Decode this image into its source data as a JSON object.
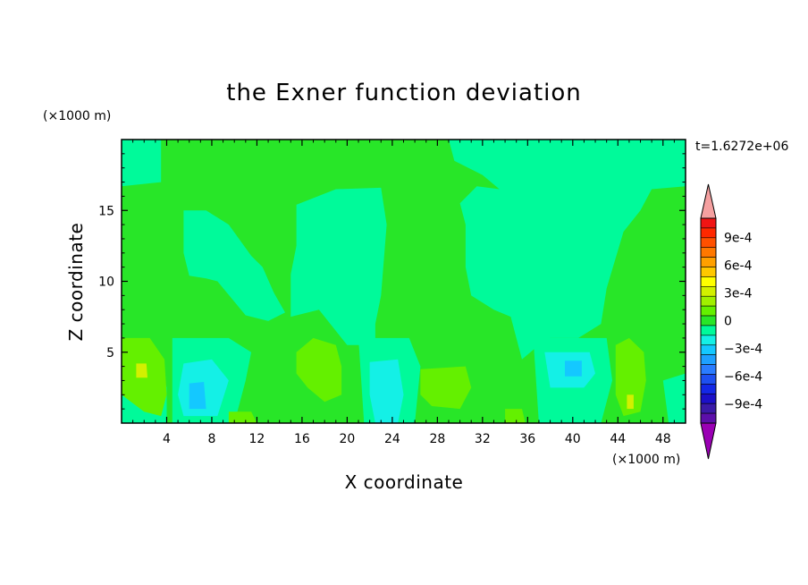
{
  "chart_data": {
    "type": "heatmap",
    "title": "the Exner function deviation",
    "xlabel": "X coordinate",
    "ylabel": "Z coordinate",
    "x_unit": "(×1000 m)",
    "y_unit": "(×1000 m)",
    "time_label": "t=1.6272e+06",
    "xlim": [
      0,
      50
    ],
    "ylim": [
      0,
      20
    ],
    "x_ticks": [
      4,
      8,
      12,
      16,
      20,
      24,
      28,
      32,
      36,
      40,
      44,
      48
    ],
    "y_ticks": [
      5,
      10,
      15
    ],
    "x_tick_labels": [
      "4",
      "8",
      "12",
      "16",
      "20",
      "24",
      "28",
      "32",
      "36",
      "40",
      "44",
      "48"
    ],
    "y_tick_labels": [
      "5",
      "10",
      "15"
    ],
    "colorbar": {
      "levels": [
        -0.0011,
        -0.001,
        -0.0009,
        -0.0008,
        -0.0007,
        -0.0006,
        -0.0005,
        -0.0004,
        -0.0003,
        -0.0002,
        -0.0001,
        0,
        0.0001,
        0.0002,
        0.0003,
        0.0004,
        0.0005,
        0.0006,
        0.0007,
        0.0008,
        0.0009,
        0.001,
        0.0011
      ],
      "colors": [
        "#9a00b4",
        "#5c0faa",
        "#3a1aa8",
        "#1c10c8",
        "#1428e6",
        "#1e50f0",
        "#2a7cff",
        "#1ea0ff",
        "#14c8ff",
        "#14f0e6",
        "#00fa9a",
        "#28e628",
        "#64f000",
        "#a0f000",
        "#d2f000",
        "#ffff00",
        "#ffc800",
        "#ffa000",
        "#ff7800",
        "#ff5000",
        "#ff2800",
        "#f01414",
        "#f5a0a0"
      ],
      "tick_labels": [
        {
          "label": "9e-4",
          "value": 0.0009
        },
        {
          "label": "6e-4",
          "value": 0.0006
        },
        {
          "label": "3e-4",
          "value": 0.0003
        },
        {
          "label": "0",
          "value": 0
        },
        {
          "label": "−3e-4",
          "value": -0.0003
        },
        {
          "label": "−6e-4",
          "value": -0.0006
        },
        {
          "label": "−9e-4",
          "value": -0.0009
        }
      ]
    },
    "regions": [
      {
        "level": "light",
        "color": "#00fa9a",
        "poly": [
          [
            0,
            20
          ],
          [
            3.5,
            20
          ],
          [
            3.5,
            17
          ],
          [
            0,
            16.7
          ]
        ]
      },
      {
        "level": "light",
        "color": "#00fa9a",
        "poly": [
          [
            5.5,
            15
          ],
          [
            7.5,
            15
          ],
          [
            9.5,
            14
          ],
          [
            11.5,
            11.8
          ],
          [
            12.5,
            11
          ],
          [
            13.5,
            9.2
          ],
          [
            14.5,
            7.8
          ],
          [
            13,
            7.2
          ],
          [
            11,
            7.6
          ],
          [
            8.5,
            10
          ],
          [
            7.5,
            10.2
          ],
          [
            6,
            10.4
          ],
          [
            5.5,
            12
          ]
        ]
      },
      {
        "level": "light",
        "color": "#00fa9a",
        "poly": [
          [
            15.5,
            15.4
          ],
          [
            19,
            16.5
          ],
          [
            23,
            16.6
          ],
          [
            23.5,
            14
          ],
          [
            23,
            9
          ],
          [
            22.5,
            7
          ],
          [
            22.5,
            5.5
          ],
          [
            20,
            5.5
          ],
          [
            17.5,
            8
          ],
          [
            15,
            7.5
          ],
          [
            15,
            10.5
          ],
          [
            15.5,
            12.5
          ]
        ]
      },
      {
        "level": "light",
        "color": "#00fa9a",
        "poly": [
          [
            29,
            20
          ],
          [
            50,
            20
          ],
          [
            50,
            16.7
          ],
          [
            47,
            16.5
          ],
          [
            46,
            15
          ],
          [
            44.5,
            13.5
          ],
          [
            43,
            9.5
          ],
          [
            42.5,
            7
          ],
          [
            40.5,
            6
          ],
          [
            38,
            6
          ],
          [
            37,
            5.5
          ],
          [
            35.5,
            4.5
          ],
          [
            35,
            6
          ],
          [
            34.5,
            7.5
          ],
          [
            33,
            8
          ],
          [
            31,
            9
          ],
          [
            30.5,
            11
          ],
          [
            30.5,
            14
          ],
          [
            30,
            15.5
          ],
          [
            31.5,
            16.7
          ],
          [
            33.5,
            16.5
          ],
          [
            32,
            17.5
          ],
          [
            29.5,
            18.5
          ]
        ]
      },
      {
        "level": "light",
        "color": "#00fa9a",
        "poly": [
          [
            0,
            5.8
          ],
          [
            2,
            5.8
          ],
          [
            3.5,
            4
          ],
          [
            4,
            2.5
          ],
          [
            4,
            0
          ],
          [
            0,
            0
          ]
        ]
      },
      {
        "level": "light",
        "color": "#00fa9a",
        "poly": [
          [
            4.5,
            6
          ],
          [
            9.5,
            6
          ],
          [
            11.5,
            5
          ],
          [
            11,
            3
          ],
          [
            10,
            0
          ],
          [
            4.5,
            0
          ]
        ]
      },
      {
        "level": "light",
        "color": "#00fa9a",
        "poly": [
          [
            21,
            6
          ],
          [
            25.5,
            6
          ],
          [
            26.5,
            4
          ],
          [
            26,
            0
          ],
          [
            21.5,
            0
          ]
        ]
      },
      {
        "level": "light",
        "color": "#00fa9a",
        "poly": [
          [
            36.5,
            6
          ],
          [
            43,
            6
          ],
          [
            43.5,
            3
          ],
          [
            42.5,
            0
          ],
          [
            37,
            0
          ]
        ]
      },
      {
        "level": "light",
        "color": "#00fa9a",
        "poly": [
          [
            48,
            3
          ],
          [
            50,
            3.5
          ],
          [
            50,
            0
          ],
          [
            48.5,
            0
          ]
        ]
      },
      {
        "level": "cyan",
        "color": "#14f0e6",
        "poly": [
          [
            5.5,
            4.2
          ],
          [
            8,
            4.5
          ],
          [
            9.5,
            3
          ],
          [
            8.5,
            0.5
          ],
          [
            5.5,
            0.5
          ],
          [
            5,
            2
          ]
        ]
      },
      {
        "level": "cyan",
        "color": "#14f0e6",
        "poly": [
          [
            22,
            4.3
          ],
          [
            24.5,
            4.5
          ],
          [
            25,
            2
          ],
          [
            24.5,
            0
          ],
          [
            22.5,
            0
          ],
          [
            22,
            2
          ]
        ]
      },
      {
        "level": "cyan",
        "color": "#14f0e6",
        "poly": [
          [
            37.5,
            5
          ],
          [
            41.5,
            5
          ],
          [
            42,
            3.5
          ],
          [
            41,
            2.5
          ],
          [
            38,
            2.5
          ]
        ]
      },
      {
        "level": "cyan2",
        "color": "#14c8ff",
        "poly": [
          [
            6,
            2.8
          ],
          [
            7.3,
            2.9
          ],
          [
            7.5,
            1
          ],
          [
            6,
            1
          ]
        ]
      },
      {
        "level": "cyan2",
        "color": "#14c8ff",
        "poly": [
          [
            39.3,
            4.4
          ],
          [
            40.8,
            4.4
          ],
          [
            40.8,
            3.3
          ],
          [
            39.3,
            3.3
          ]
        ]
      },
      {
        "level": "lime",
        "color": "#64f000",
        "poly": [
          [
            0,
            6
          ],
          [
            2.5,
            6
          ],
          [
            3.8,
            4.5
          ],
          [
            4,
            2
          ],
          [
            3.5,
            0.5
          ],
          [
            2,
            0.8
          ],
          [
            0,
            2
          ]
        ]
      },
      {
        "level": "lime",
        "color": "#64f000",
        "poly": [
          [
            15.5,
            5
          ],
          [
            17,
            6
          ],
          [
            19,
            5.5
          ],
          [
            19.5,
            4
          ],
          [
            19.5,
            2
          ],
          [
            18,
            1.5
          ],
          [
            16.5,
            2.5
          ],
          [
            15.5,
            3.5
          ]
        ]
      },
      {
        "level": "lime",
        "color": "#64f000",
        "poly": [
          [
            26.5,
            3.8
          ],
          [
            30.5,
            4
          ],
          [
            31,
            2.5
          ],
          [
            30,
            1
          ],
          [
            27.5,
            1.2
          ],
          [
            26.5,
            2
          ]
        ]
      },
      {
        "level": "lime",
        "color": "#64f000",
        "poly": [
          [
            43.8,
            5.5
          ],
          [
            45,
            6
          ],
          [
            46.3,
            5
          ],
          [
            46.5,
            3
          ],
          [
            46,
            0.8
          ],
          [
            44.5,
            0.5
          ],
          [
            43.8,
            2
          ]
        ]
      },
      {
        "level": "lime",
        "color": "#64f000",
        "poly": [
          [
            9.5,
            0.8
          ],
          [
            11.5,
            0.8
          ],
          [
            12,
            0
          ],
          [
            9.5,
            0
          ]
        ]
      },
      {
        "level": "lime",
        "color": "#64f000",
        "poly": [
          [
            34,
            1
          ],
          [
            35.5,
            1
          ],
          [
            35.8,
            0
          ],
          [
            34,
            0
          ]
        ]
      },
      {
        "level": "yellow",
        "color": "#d2f000",
        "poly": [
          [
            1.3,
            4.2
          ],
          [
            2.2,
            4.2
          ],
          [
            2.3,
            3.2
          ],
          [
            1.3,
            3.2
          ]
        ]
      },
      {
        "level": "yellow",
        "color": "#d2f000",
        "poly": [
          [
            44.8,
            2
          ],
          [
            45.4,
            2
          ],
          [
            45.4,
            1
          ],
          [
            44.8,
            1
          ]
        ]
      }
    ]
  }
}
